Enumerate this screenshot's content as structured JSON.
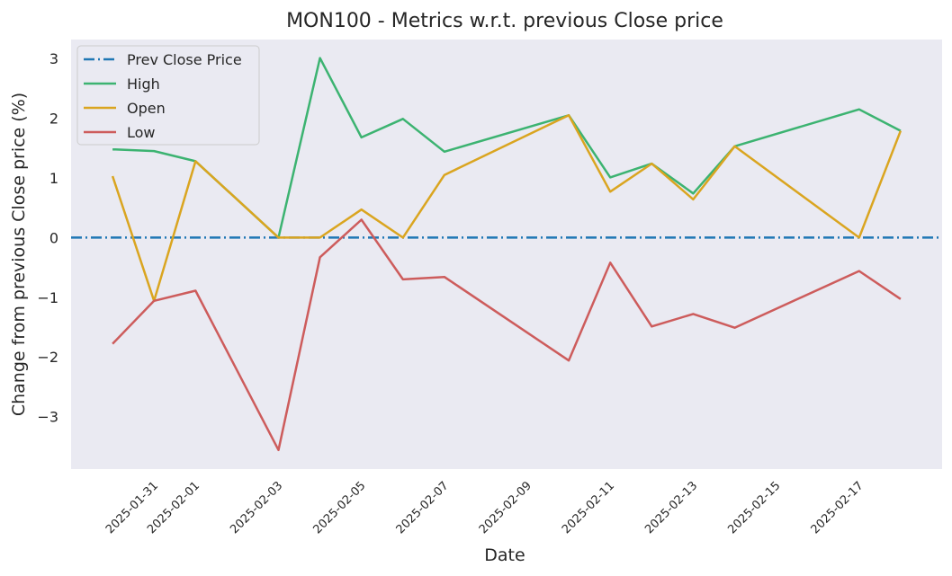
{
  "chart_data": {
    "type": "line",
    "title": "MON100 - Metrics w.r.t. previous Close price",
    "xlabel": "Date",
    "ylabel": "Change from previous Close price (%)",
    "x": [
      "2025-01-30",
      "2025-01-31",
      "2025-02-01",
      "2025-02-03",
      "2025-02-04",
      "2025-02-05",
      "2025-02-06",
      "2025-02-07",
      "2025-02-10",
      "2025-02-11",
      "2025-02-12",
      "2025-02-13",
      "2025-02-14",
      "2025-02-17",
      "2025-02-18"
    ],
    "xticks": [
      "2025-01-31",
      "2025-02-01",
      "2025-02-03",
      "2025-02-05",
      "2025-02-07",
      "2025-02-09",
      "2025-02-11",
      "2025-02-13",
      "2025-02-15",
      "2025-02-17"
    ],
    "xlim": [
      "2025-01-29",
      "2025-02-19"
    ],
    "yticks": [
      -3,
      -2,
      -1,
      0,
      1,
      2,
      3
    ],
    "yticklabels": [
      "−3",
      "−2",
      "−1",
      "0",
      "1",
      "2",
      "3"
    ],
    "ylim": [
      -3.88,
      3.32
    ],
    "grid": false,
    "legend_position": "top-left",
    "reference_line": {
      "name": "Prev Close Price",
      "value": 0,
      "color": "#1f77b4",
      "style": "dashdot"
    },
    "series": [
      {
        "name": "High",
        "color": "#3cb371",
        "values": [
          1.48,
          1.45,
          1.28,
          0.0,
          3.01,
          1.68,
          1.99,
          1.44,
          2.05,
          1.01,
          1.24,
          0.74,
          1.53,
          2.15,
          1.79
        ]
      },
      {
        "name": "Open",
        "color": "#daa520",
        "values": [
          1.03,
          -1.06,
          1.28,
          0.0,
          0.0,
          0.47,
          0.0,
          1.05,
          2.05,
          0.77,
          1.24,
          0.64,
          1.53,
          0.0,
          1.79
        ]
      },
      {
        "name": "Low",
        "color": "#cd5c5c",
        "values": [
          -1.78,
          -1.06,
          -0.89,
          -3.56,
          -0.33,
          0.3,
          -0.7,
          -0.66,
          -2.06,
          -0.42,
          -1.49,
          -1.28,
          -1.51,
          -0.56,
          -1.03
        ]
      }
    ]
  }
}
